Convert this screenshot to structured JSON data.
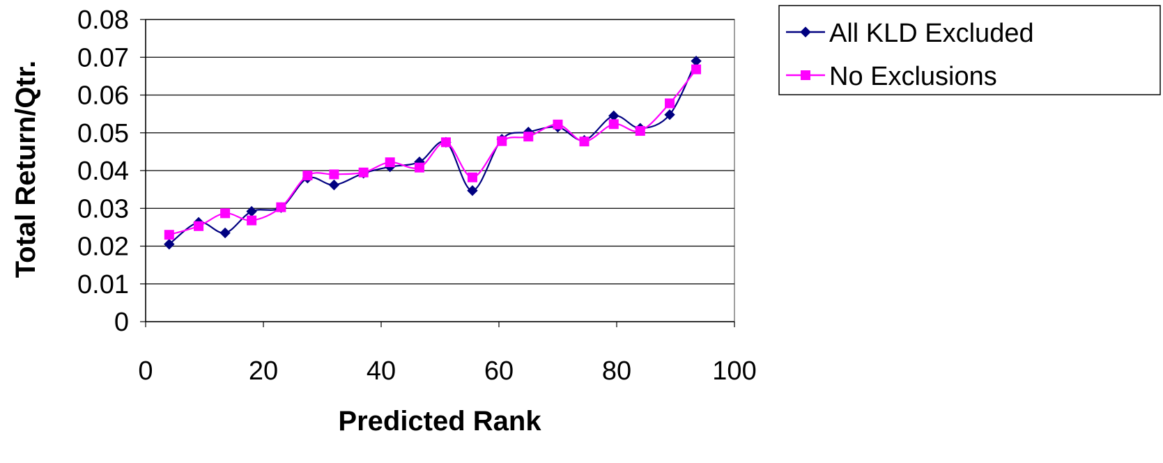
{
  "chart_data": {
    "type": "line",
    "title": "",
    "xlabel": "Predicted Rank",
    "ylabel": "Total Return/Qtr.",
    "xlim": [
      0,
      100
    ],
    "ylim": [
      0,
      0.08
    ],
    "x_ticks": [
      "0",
      "20",
      "40",
      "60",
      "80",
      "100"
    ],
    "y_ticks": [
      "0",
      "0.01",
      "0.02",
      "0.03",
      "0.04",
      "0.05",
      "0.06",
      "0.07",
      "0.08"
    ],
    "x": [
      4,
      9,
      13.5,
      18,
      23,
      27.5,
      32,
      37,
      41.5,
      46.5,
      51,
      55.5,
      60.5,
      65,
      70,
      74.5,
      79.5,
      84,
      89,
      93.5
    ],
    "series": [
      {
        "name": "All KLD Excluded",
        "color": "#000080",
        "marker": "diamond",
        "values": [
          0.0205,
          0.0263,
          0.0235,
          0.0292,
          0.0302,
          0.038,
          0.0362,
          0.0393,
          0.041,
          0.0423,
          0.0475,
          0.0347,
          0.0483,
          0.0502,
          0.0515,
          0.048,
          0.0545,
          0.0512,
          0.0548,
          0.069
        ]
      },
      {
        "name": "No Exclusions",
        "color": "#FF00FF",
        "marker": "square",
        "values": [
          0.023,
          0.0253,
          0.0287,
          0.0268,
          0.0303,
          0.0387,
          0.039,
          0.0395,
          0.0422,
          0.0408,
          0.0475,
          0.0382,
          0.0478,
          0.049,
          0.0522,
          0.0477,
          0.0523,
          0.0505,
          0.0578,
          0.0668
        ]
      }
    ],
    "grid": "horizontal",
    "legend_position": "top-right"
  }
}
